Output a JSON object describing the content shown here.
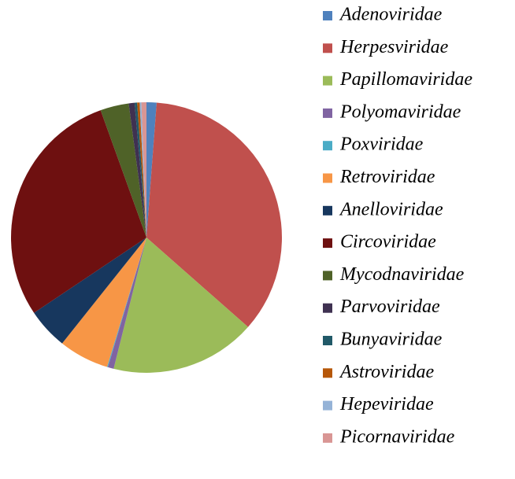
{
  "chart_data": {
    "type": "pie",
    "categories": [
      "Adenoviridae",
      "Herpesviridae",
      "Papillomaviridae",
      "Polyomaviridae",
      "Poxviridae",
      "Retroviridae",
      "Anelloviridae",
      "Circoviridae",
      "Mycodnaviridae",
      "Parvoviridae",
      "Bunyaviridae",
      "Astroviridae",
      "Hepeviridae",
      "Picornaviridae"
    ],
    "values": [
      1.2,
      35.3,
      17.4,
      0.7,
      0.1,
      6,
      4.9,
      28.9,
      3.4,
      0.7,
      0.3,
      0.3,
      0.2,
      0.6
    ],
    "colors": [
      "#4f81bd",
      "#c0504d",
      "#9bbb59",
      "#8064a2",
      "#4bacc6",
      "#f79646",
      "#17375e",
      "#6e1010",
      "#4f6228",
      "#3f3151",
      "#215968",
      "#b65708",
      "#95b3d7",
      "#d99694"
    ],
    "legend": "right"
  }
}
